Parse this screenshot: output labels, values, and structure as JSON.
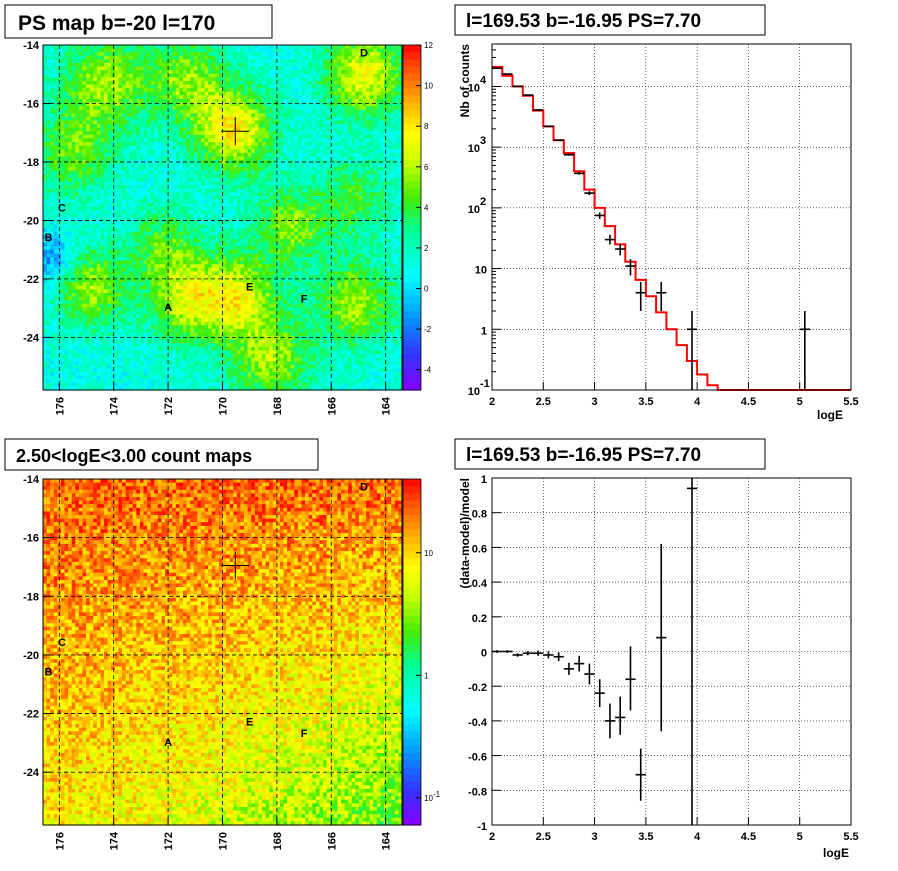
{
  "chart_data": [
    {
      "type": "heatmap",
      "title": "PS map b=-20 l=170",
      "x_ticks": [
        "176",
        "174",
        "172",
        "170",
        "168",
        "166",
        "164"
      ],
      "x_tick_values": [
        176,
        174,
        172,
        170,
        168,
        166,
        164
      ],
      "xlim": [
        176.6,
        163.4
      ],
      "y_ticks": [
        "-14",
        "-16",
        "-18",
        "-20",
        "-22",
        "-24"
      ],
      "y_tick_values": [
        -14,
        -16,
        -18,
        -20,
        -22,
        -24
      ],
      "ylim": [
        -25.8,
        -14
      ],
      "colorbar_ticks": [
        "12",
        "10",
        "8",
        "6",
        "4",
        "2",
        "0",
        "-2",
        "-4"
      ],
      "colorbar_tick_values": [
        12,
        10,
        8,
        6,
        4,
        2,
        0,
        -2,
        -4
      ],
      "colorbar_range": [
        -5,
        12
      ],
      "colorbar_scale": "linear",
      "grid": "dashed",
      "marker": {
        "l": 169.53,
        "b": -16.95,
        "shape": "cross"
      },
      "sources": [
        {
          "label": "A",
          "l": 172.0,
          "b": -23.1
        },
        {
          "label": "B",
          "l": 176.4,
          "b": -20.7
        },
        {
          "label": "C",
          "l": 175.9,
          "b": -19.7
        },
        {
          "label": "D",
          "l": 164.8,
          "b": -14.4
        },
        {
          "label": "E",
          "l": 169.0,
          "b": -22.4
        },
        {
          "label": "F",
          "l": 167.0,
          "b": -22.8
        }
      ],
      "hotspots": [
        {
          "l": 169.6,
          "b": -16.9,
          "v": 6.5,
          "r": 1.0
        },
        {
          "l": 174.3,
          "b": -15.3,
          "v": 4.5,
          "r": 1.1
        },
        {
          "l": 171.3,
          "b": -15.2,
          "v": 4.0,
          "r": 1.0
        },
        {
          "l": 164.8,
          "b": -15.0,
          "v": 6.0,
          "r": 1.0
        },
        {
          "l": 175.5,
          "b": -17.7,
          "v": 3.5,
          "r": 1.0
        },
        {
          "l": 167.5,
          "b": -20.2,
          "v": 4.0,
          "r": 0.9
        },
        {
          "l": 172.2,
          "b": -20.8,
          "v": 3.0,
          "r": 0.9
        },
        {
          "l": 174.8,
          "b": -22.3,
          "v": 4.5,
          "r": 0.9
        },
        {
          "l": 171.3,
          "b": -22.7,
          "v": 5.0,
          "r": 1.0
        },
        {
          "l": 169.4,
          "b": -22.6,
          "v": 5.5,
          "r": 1.0
        },
        {
          "l": 168.2,
          "b": -24.8,
          "v": 4.5,
          "r": 1.0
        },
        {
          "l": 165.1,
          "b": -22.8,
          "v": 4.5,
          "r": 1.0
        },
        {
          "l": 165.2,
          "b": -19.3,
          "v": 3.0,
          "r": 0.9
        },
        {
          "l": 176.3,
          "b": -21.3,
          "v": -3.0,
          "r": 0.6
        }
      ],
      "base_value": 1.2
    },
    {
      "type": "line",
      "title": "l=169.53 b=-16.95 PS=7.70",
      "xlabel": "logE",
      "ylabel": "Nb of counts",
      "xlim": [
        2,
        5.5
      ],
      "ylim": [
        0.1,
        50000
      ],
      "yscale": "log",
      "grid": "dotted",
      "x_ticks": [
        "2",
        "2.5",
        "3",
        "3.5",
        "4",
        "4.5",
        "5",
        "5.5"
      ],
      "x_tick_values": [
        2,
        2.5,
        3,
        3.5,
        4,
        4.5,
        5,
        5.5
      ],
      "y_ticks": [
        "0.1",
        "1",
        "10",
        "100",
        "1000",
        "10000"
      ],
      "y_tick_values": [
        0.1,
        1,
        10,
        100,
        1000,
        10000
      ],
      "y_tick_style": [
        "plain",
        "plain",
        "plain",
        "pow",
        "pow",
        "pow"
      ],
      "y_tick_base": "10",
      "y_tick_exponents": [
        "-1",
        "",
        "",
        "2",
        "3",
        "4"
      ],
      "series": [
        {
          "style": "step",
          "color": "#ff0000",
          "bin_edges": [
            2.0,
            2.1,
            2.2,
            2.3,
            2.4,
            2.5,
            2.6,
            2.7,
            2.8,
            2.9,
            3.0,
            3.1,
            3.2,
            3.3,
            3.4,
            3.5,
            3.6,
            3.7,
            3.8,
            3.9,
            4.0,
            4.1,
            4.2,
            4.3,
            4.4,
            4.5,
            4.6,
            4.7,
            4.8,
            4.9,
            5.0,
            5.1,
            5.2,
            5.3,
            5.4,
            5.5
          ],
          "values": [
            21000,
            15000,
            10000,
            7000,
            4000,
            2200,
            1300,
            800,
            400,
            200,
            100,
            50,
            25,
            13,
            6.5,
            3.5,
            1.9,
            1.0,
            0.55,
            0.3,
            0.18,
            0.12,
            0.1,
            0.1,
            0.1,
            0.1,
            0.1,
            0.1,
            0.1,
            0.1,
            0.1,
            0.1,
            0.1,
            0.1,
            0.1
          ]
        },
        {
          "style": "points",
          "color": "#000000",
          "points": [
            {
              "x": 2.05,
              "y": 20000,
              "lo": 19860,
              "hi": 20140
            },
            {
              "x": 2.15,
              "y": 16000,
              "lo": 15870,
              "hi": 16130
            },
            {
              "x": 2.25,
              "y": 10000,
              "lo": 9900,
              "hi": 10100
            },
            {
              "x": 2.35,
              "y": 7200,
              "lo": 7115,
              "hi": 7285
            },
            {
              "x": 2.45,
              "y": 4100,
              "lo": 4036,
              "hi": 4164
            },
            {
              "x": 2.55,
              "y": 2200,
              "lo": 2153,
              "hi": 2247
            },
            {
              "x": 2.65,
              "y": 1300,
              "lo": 1264,
              "hi": 1336
            },
            {
              "x": 2.75,
              "y": 750,
              "lo": 723,
              "hi": 777
            },
            {
              "x": 2.85,
              "y": 370,
              "lo": 351,
              "hi": 389
            },
            {
              "x": 2.95,
              "y": 175,
              "lo": 162,
              "hi": 188
            },
            {
              "x": 3.05,
              "y": 75,
              "lo": 66,
              "hi": 84
            },
            {
              "x": 3.15,
              "y": 30,
              "lo": 25,
              "hi": 36
            },
            {
              "x": 3.25,
              "y": 21,
              "lo": 16.5,
              "hi": 25.5
            },
            {
              "x": 3.35,
              "y": 11,
              "lo": 7.7,
              "hi": 14.3
            },
            {
              "x": 3.45,
              "y": 4,
              "lo": 2,
              "hi": 6
            },
            {
              "x": 3.65,
              "y": 4,
              "lo": 2,
              "hi": 6
            },
            {
              "x": 3.95,
              "y": 1,
              "lo": 0.1,
              "hi": 2.0
            },
            {
              "x": 5.05,
              "y": 1,
              "lo": 0.1,
              "hi": 2.0
            }
          ]
        }
      ]
    },
    {
      "type": "heatmap",
      "title": "2.50<logE<3.00 count maps",
      "x_ticks": [
        "176",
        "174",
        "172",
        "170",
        "168",
        "166",
        "164"
      ],
      "x_tick_values": [
        176,
        174,
        172,
        170,
        168,
        166,
        164
      ],
      "xlim": [
        176.6,
        163.4
      ],
      "y_ticks": [
        "-14",
        "-16",
        "-18",
        "-20",
        "-22",
        "-24"
      ],
      "y_tick_values": [
        -14,
        -16,
        -18,
        -20,
        -22,
        -24
      ],
      "ylim": [
        -25.8,
        -14
      ],
      "colorbar_ticks": [
        "10",
        "1",
        "10"
      ],
      "colorbar_tick_values": [
        10,
        1,
        0.1
      ],
      "colorbar_tick_exponents": [
        "",
        "",
        "-1"
      ],
      "colorbar_range": [
        0.06,
        40
      ],
      "colorbar_scale": "log",
      "grid": "dashed",
      "marker": {
        "l": 169.53,
        "b": -16.95,
        "shape": "cross"
      },
      "sources": [
        {
          "label": "A",
          "l": 172.0,
          "b": -23.1
        },
        {
          "label": "B",
          "l": 176.4,
          "b": -20.7
        },
        {
          "label": "C",
          "l": 175.9,
          "b": -19.7
        },
        {
          "label": "D",
          "l": 164.8,
          "b": -14.4
        },
        {
          "label": "E",
          "l": 169.0,
          "b": -22.4
        },
        {
          "label": "F",
          "l": 167.0,
          "b": -22.8
        }
      ],
      "gradient_top": 22,
      "gradient_bottom_left": 8,
      "gradient_bottom_right": 2.2
    },
    {
      "type": "scatter",
      "title": "l=169.53 b=-16.95 PS=7.70",
      "xlabel": "logE",
      "ylabel": "(data-model)/model",
      "xlim": [
        2,
        5.5
      ],
      "ylim": [
        -1,
        1
      ],
      "grid": "dotted",
      "x_ticks": [
        "2",
        "2.5",
        "3",
        "3.5",
        "4",
        "4.5",
        "5",
        "5.5"
      ],
      "x_tick_values": [
        2,
        2.5,
        3,
        3.5,
        4,
        4.5,
        5,
        5.5
      ],
      "y_ticks": [
        "-1",
        "-0.8",
        "-0.6",
        "-0.4",
        "-0.2",
        "0",
        "0.2",
        "0.4",
        "0.6",
        "0.8",
        "1"
      ],
      "y_tick_values": [
        -1,
        -0.8,
        -0.6,
        -0.4,
        -0.2,
        0,
        0.2,
        0.4,
        0.6,
        0.8,
        1
      ],
      "points": [
        {
          "x": 2.05,
          "y": 0.0,
          "lo": -0.008,
          "hi": 0.008
        },
        {
          "x": 2.15,
          "y": 0.0,
          "lo": -0.008,
          "hi": 0.008
        },
        {
          "x": 2.25,
          "y": -0.02,
          "lo": -0.03,
          "hi": -0.01
        },
        {
          "x": 2.35,
          "y": -0.01,
          "lo": -0.022,
          "hi": 0.002
        },
        {
          "x": 2.45,
          "y": -0.01,
          "lo": -0.025,
          "hi": 0.005
        },
        {
          "x": 2.55,
          "y": -0.02,
          "lo": -0.04,
          "hi": 0.0
        },
        {
          "x": 2.65,
          "y": -0.03,
          "lo": -0.055,
          "hi": -0.005
        },
        {
          "x": 2.75,
          "y": -0.1,
          "lo": -0.135,
          "hi": -0.065
        },
        {
          "x": 2.85,
          "y": -0.07,
          "lo": -0.115,
          "hi": -0.025
        },
        {
          "x": 2.95,
          "y": -0.13,
          "lo": -0.19,
          "hi": -0.07
        },
        {
          "x": 3.05,
          "y": -0.24,
          "lo": -0.32,
          "hi": -0.16
        },
        {
          "x": 3.15,
          "y": -0.4,
          "lo": -0.5,
          "hi": -0.3
        },
        {
          "x": 3.25,
          "y": -0.38,
          "lo": -0.48,
          "hi": -0.26
        },
        {
          "x": 3.35,
          "y": -0.16,
          "lo": -0.34,
          "hi": 0.03
        },
        {
          "x": 3.45,
          "y": -0.71,
          "lo": -0.86,
          "hi": -0.56
        },
        {
          "x": 3.65,
          "y": 0.08,
          "lo": -0.46,
          "hi": 0.62
        },
        {
          "x": 3.95,
          "y": 0.94,
          "lo": -1.0,
          "hi": 1.0
        }
      ]
    }
  ]
}
